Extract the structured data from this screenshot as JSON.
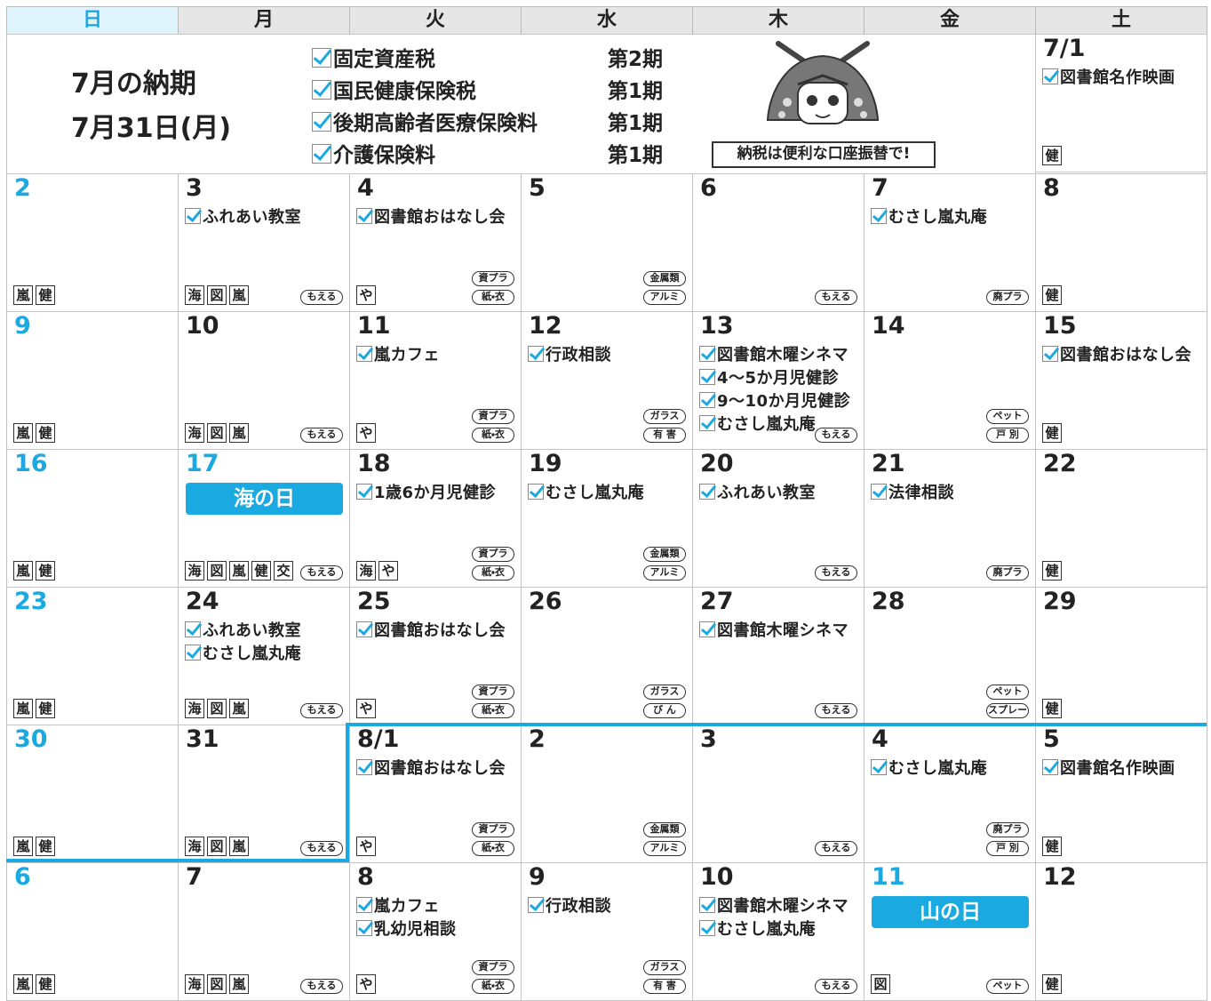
{
  "header": {
    "weekdays": [
      "日",
      "月",
      "火",
      "水",
      "木",
      "金",
      "土"
    ]
  },
  "info": {
    "title": "7月の納期",
    "deadline": "7月31日(月)",
    "taxes": [
      {
        "name": "固定資産税",
        "period": "第2期"
      },
      {
        "name": "国民健康保険税",
        "period": "第1期"
      },
      {
        "name": "後期高齢者医療保険料",
        "period": "第1期"
      },
      {
        "name": "介護保険料",
        "period": "第1期"
      }
    ],
    "caption": "納税は便利な口座振替で!"
  },
  "first_cell": {
    "date": "7/1",
    "events": [
      "図書館名作映画"
    ],
    "badges": [
      "健"
    ]
  },
  "weeks": [
    [
      {
        "date": "2",
        "badges": [
          "嵐",
          "健"
        ]
      },
      {
        "date": "3",
        "events": [
          "ふれあい教室"
        ],
        "badges": [
          "海",
          "図",
          "嵐"
        ],
        "pills": [
          "もえる"
        ]
      },
      {
        "date": "4",
        "events": [
          "図書館おはなし会"
        ],
        "badges": [
          "や"
        ],
        "pills": [
          "資プラ",
          "紙・衣"
        ]
      },
      {
        "date": "5",
        "pills": [
          "金属類",
          "アルミ"
        ]
      },
      {
        "date": "6",
        "pills": [
          "もえる"
        ]
      },
      {
        "date": "7",
        "events": [
          "むさし嵐丸庵"
        ],
        "pills": [
          "廃プラ"
        ]
      },
      {
        "date": "8",
        "badges": [
          "健"
        ]
      }
    ],
    [
      {
        "date": "9",
        "badges": [
          "嵐",
          "健"
        ]
      },
      {
        "date": "10",
        "badges": [
          "海",
          "図",
          "嵐"
        ],
        "pills": [
          "もえる"
        ]
      },
      {
        "date": "11",
        "events": [
          "嵐カフェ"
        ],
        "badges": [
          "や"
        ],
        "pills": [
          "資プラ",
          "紙・衣"
        ]
      },
      {
        "date": "12",
        "events": [
          "行政相談"
        ],
        "pills": [
          "ガラス",
          "有 害"
        ]
      },
      {
        "date": "13",
        "events": [
          "図書館木曜シネマ",
          "4～5か月児健診",
          "9～10か月児健診",
          "むさし嵐丸庵"
        ],
        "pills": [
          "もえる"
        ]
      },
      {
        "date": "14",
        "pills": [
          "ペット",
          "戸 別"
        ]
      },
      {
        "date": "15",
        "events": [
          "図書館おはなし会"
        ],
        "badges": [
          "健"
        ]
      }
    ],
    [
      {
        "date": "16",
        "badges": [
          "嵐",
          "健"
        ]
      },
      {
        "date": "17",
        "holiday": "海の日",
        "badges": [
          "海",
          "図",
          "嵐",
          "健",
          "交"
        ],
        "pills": [
          "もえる"
        ]
      },
      {
        "date": "18",
        "events": [
          "1歳6か月児健診"
        ],
        "badges": [
          "海",
          "や"
        ],
        "pills": [
          "資プラ",
          "紙・衣"
        ]
      },
      {
        "date": "19",
        "events": [
          "むさし嵐丸庵"
        ],
        "pills": [
          "金属類",
          "アルミ"
        ]
      },
      {
        "date": "20",
        "events": [
          "ふれあい教室"
        ],
        "pills": [
          "もえる"
        ]
      },
      {
        "date": "21",
        "events": [
          "法律相談"
        ],
        "pills": [
          "廃プラ"
        ]
      },
      {
        "date": "22",
        "badges": [
          "健"
        ]
      }
    ],
    [
      {
        "date": "23",
        "badges": [
          "嵐",
          "健"
        ]
      },
      {
        "date": "24",
        "events": [
          "ふれあい教室",
          "むさし嵐丸庵"
        ],
        "badges": [
          "海",
          "図",
          "嵐"
        ],
        "pills": [
          "もえる"
        ]
      },
      {
        "date": "25",
        "events": [
          "図書館おはなし会"
        ],
        "badges": [
          "や"
        ],
        "pills": [
          "資プラ",
          "紙・衣"
        ]
      },
      {
        "date": "26",
        "pills": [
          "ガラス",
          "び ん"
        ]
      },
      {
        "date": "27",
        "events": [
          "図書館木曜シネマ"
        ],
        "pills": [
          "もえる"
        ]
      },
      {
        "date": "28",
        "pills": [
          "ペット",
          "スプレー"
        ]
      },
      {
        "date": "29",
        "badges": [
          "健"
        ]
      }
    ],
    [
      {
        "date": "30",
        "badges": [
          "嵐",
          "健"
        ]
      },
      {
        "date": "31",
        "badges": [
          "海",
          "図",
          "嵐"
        ],
        "pills": [
          "もえる"
        ]
      },
      {
        "date": "8/1",
        "events": [
          "図書館おはなし会"
        ],
        "badges": [
          "や"
        ],
        "pills": [
          "資プラ",
          "紙・衣"
        ]
      },
      {
        "date": "2",
        "pills": [
          "金属類",
          "アルミ"
        ]
      },
      {
        "date": "3",
        "pills": [
          "もえる"
        ]
      },
      {
        "date": "4",
        "events": [
          "むさし嵐丸庵"
        ],
        "pills": [
          "廃プラ",
          "戸 別"
        ]
      },
      {
        "date": "5",
        "events": [
          "図書館名作映画"
        ],
        "badges": [
          "健"
        ]
      }
    ],
    [
      {
        "date": "6",
        "badges": [
          "嵐",
          "健"
        ]
      },
      {
        "date": "7",
        "badges": [
          "海",
          "図",
          "嵐"
        ],
        "pills": [
          "もえる"
        ]
      },
      {
        "date": "8",
        "events": [
          "嵐カフェ",
          "乳幼児相談"
        ],
        "badges": [
          "や"
        ],
        "pills": [
          "資プラ",
          "紙・衣"
        ]
      },
      {
        "date": "9",
        "events": [
          "行政相談"
        ],
        "pills": [
          "ガラス",
          "有 害"
        ]
      },
      {
        "date": "10",
        "events": [
          "図書館木曜シネマ",
          "むさし嵐丸庵"
        ],
        "pills": [
          "もえる"
        ]
      },
      {
        "date": "11",
        "holiday": "山の日",
        "badges": [
          "図"
        ],
        "pills": [
          "ペット"
        ]
      },
      {
        "date": "12",
        "badges": [
          "健"
        ]
      }
    ]
  ]
}
